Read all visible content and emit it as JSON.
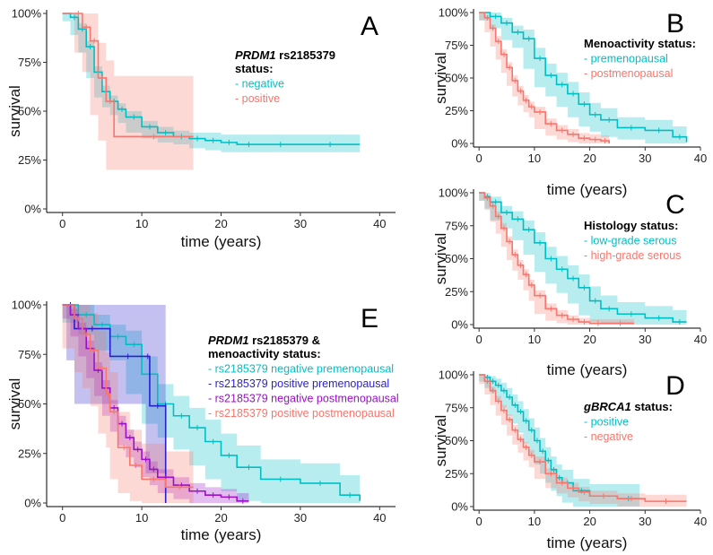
{
  "colors": {
    "teal": "#00BFC4",
    "salmon": "#F8766D",
    "blue": "#2A1FCC",
    "purple": "#9A10C9"
  },
  "chart_data": [
    {
      "id": "A",
      "type": "line",
      "panel_label": "A",
      "xlabel": "time (years)",
      "ylabel": "survival",
      "xlim": [
        -2,
        42
      ],
      "ylim": [
        0,
        100
      ],
      "xticks": [
        0,
        10,
        20,
        30,
        40
      ],
      "yticks": [
        "0%",
        "25%",
        "50%",
        "75%",
        "100%"
      ],
      "legend": {
        "title_italic": "PRDM1",
        "title_rest": " rs2185379",
        "title_line2": "status:",
        "placement": "top-right"
      },
      "series": [
        {
          "name": "negative",
          "label": "- negative",
          "color": "teal",
          "x": [
            0,
            1,
            2,
            3,
            4,
            5,
            6,
            7,
            8,
            10,
            12,
            14,
            16,
            18,
            20,
            22,
            25,
            30,
            37.5
          ],
          "y": [
            100,
            98,
            92,
            83,
            70,
            60,
            55,
            51,
            47,
            42,
            39,
            37,
            36,
            35,
            34,
            33,
            33,
            33,
            33
          ],
          "lower": [
            100,
            96,
            89,
            80,
            67,
            57,
            52,
            48,
            44,
            39,
            36,
            34,
            33,
            31,
            30,
            29,
            29,
            29,
            29
          ],
          "upper": [
            100,
            100,
            95,
            86,
            73,
            63,
            58,
            54,
            50,
            45,
            42,
            40,
            39,
            39,
            38,
            38,
            38,
            38,
            38
          ]
        },
        {
          "name": "positive",
          "label": "- positive",
          "color": "salmon",
          "x": [
            0,
            1.5,
            2.5,
            3.5,
            4.5,
            5.5,
            6.5,
            16.5
          ],
          "y": [
            100,
            100,
            93,
            86,
            67,
            55,
            37,
            37
          ],
          "lower": [
            100,
            100,
            80,
            70,
            48,
            35,
            20,
            20
          ],
          "upper": [
            100,
            100,
            100,
            100,
            85,
            76,
            68,
            68
          ]
        }
      ]
    },
    {
      "id": "B",
      "type": "line",
      "panel_label": "B",
      "xlabel": "time (years)",
      "ylabel": "survival",
      "xlim": [
        -1,
        40
      ],
      "ylim": [
        0,
        100
      ],
      "xticks": [
        0,
        10,
        20,
        30,
        40
      ],
      "yticks": [
        "0%",
        "25%",
        "50%",
        "75%",
        "100%"
      ],
      "legend": {
        "title_italic": "",
        "title_rest": "Menoactivity status:",
        "title_line2": "",
        "placement": "top-right"
      },
      "series": [
        {
          "name": "premenopausal",
          "label": "- premenopausal",
          "color": "teal",
          "x": [
            0,
            2,
            4,
            6,
            8,
            10,
            12,
            14,
            16,
            18,
            20,
            22,
            25,
            30,
            35,
            37.5
          ],
          "y": [
            100,
            97,
            92,
            85,
            80,
            65,
            52,
            45,
            38,
            30,
            22,
            18,
            12,
            10,
            5,
            1
          ],
          "lower": [
            100,
            94,
            88,
            79,
            73,
            57,
            43,
            36,
            28,
            20,
            13,
            9,
            5,
            3,
            0,
            0
          ],
          "upper": [
            100,
            100,
            96,
            90,
            87,
            73,
            61,
            54,
            47,
            39,
            31,
            27,
            20,
            18,
            13,
            12
          ]
        },
        {
          "name": "postmenopausal",
          "label": "- postmenopausal",
          "color": "salmon",
          "x": [
            0,
            1,
            2,
            3,
            4,
            5,
            6,
            7,
            8,
            9,
            10,
            12,
            14,
            16,
            18,
            20,
            22,
            23.5
          ],
          "y": [
            100,
            96,
            88,
            78,
            68,
            58,
            48,
            40,
            33,
            28,
            24,
            15,
            10,
            7,
            4,
            3,
            2,
            0
          ],
          "lower": [
            100,
            94,
            85,
            74,
            64,
            54,
            44,
            36,
            29,
            24,
            20,
            11,
            6,
            3,
            1,
            0,
            0,
            0
          ],
          "upper": [
            100,
            98,
            91,
            82,
            72,
            62,
            52,
            44,
            37,
            32,
            28,
            19,
            14,
            11,
            8,
            7,
            6,
            4
          ]
        }
      ]
    },
    {
      "id": "C",
      "type": "line",
      "panel_label": "C",
      "xlabel": "time (years)",
      "ylabel": "survival",
      "xlim": [
        -1,
        40
      ],
      "ylim": [
        0,
        100
      ],
      "xticks": [
        0,
        10,
        20,
        30,
        40
      ],
      "yticks": [
        "0%",
        "25%",
        "50%",
        "75%",
        "100%"
      ],
      "legend": {
        "title_italic": "",
        "title_rest": "Histology status:",
        "title_line2": "",
        "placement": "top-right"
      },
      "series": [
        {
          "name": "low-grade serous",
          "label": "- low-grade serous",
          "color": "teal",
          "x": [
            0,
            1,
            2,
            4,
            6,
            8,
            10,
            12,
            14,
            16,
            18,
            20,
            22,
            25,
            30,
            35,
            37.5
          ],
          "y": [
            100,
            97,
            93,
            85,
            80,
            72,
            62,
            50,
            42,
            35,
            28,
            18,
            12,
            8,
            5,
            2,
            2
          ],
          "lower": [
            100,
            94,
            88,
            79,
            73,
            64,
            53,
            40,
            31,
            24,
            16,
            7,
            2,
            0,
            0,
            0,
            0
          ],
          "upper": [
            100,
            100,
            97,
            90,
            86,
            79,
            70,
            59,
            52,
            45,
            38,
            29,
            22,
            17,
            14,
            11,
            11
          ]
        },
        {
          "name": "high-grade serous",
          "label": "- high-grade serous",
          "color": "salmon",
          "x": [
            0,
            1,
            2,
            3,
            4,
            5,
            6,
            7,
            8,
            9,
            10,
            12,
            14,
            16,
            18,
            20,
            23,
            28
          ],
          "y": [
            100,
            96,
            90,
            82,
            73,
            63,
            53,
            45,
            38,
            30,
            22,
            12,
            7,
            4,
            2,
            1,
            1,
            1
          ],
          "lower": [
            100,
            94,
            87,
            78,
            69,
            59,
            49,
            41,
            34,
            26,
            18,
            8,
            3,
            1,
            0,
            0,
            0,
            0
          ],
          "upper": [
            100,
            98,
            93,
            86,
            77,
            67,
            57,
            49,
            42,
            34,
            26,
            16,
            11,
            7,
            5,
            4,
            4,
            4
          ]
        }
      ]
    },
    {
      "id": "D",
      "type": "line",
      "panel_label": "D",
      "xlabel": "time (years)",
      "ylabel": "survival",
      "xlim": [
        -1,
        40
      ],
      "ylim": [
        0,
        100
      ],
      "xticks": [
        0,
        10,
        20,
        30,
        40
      ],
      "yticks": [
        "0%",
        "25%",
        "50%",
        "75%",
        "100%"
      ],
      "legend": {
        "title_italic": "gBRCA1",
        "title_rest": " status:",
        "title_line2": "",
        "placement": "top-right"
      },
      "series": [
        {
          "name": "positive",
          "label": "- positive",
          "color": "teal",
          "x": [
            0,
            1,
            2,
            3,
            4,
            5,
            6,
            7,
            8,
            9,
            10,
            11,
            12,
            13,
            14,
            15,
            17,
            20,
            25,
            29
          ],
          "y": [
            100,
            98,
            95,
            92,
            88,
            83,
            77,
            72,
            65,
            58,
            50,
            42,
            35,
            28,
            22,
            18,
            12,
            8,
            6,
            6
          ],
          "lower": [
            100,
            95,
            90,
            86,
            81,
            75,
            69,
            63,
            56,
            48,
            40,
            32,
            25,
            18,
            12,
            8,
            3,
            0,
            0,
            0
          ],
          "upper": [
            100,
            100,
            99,
            97,
            94,
            90,
            85,
            80,
            74,
            67,
            60,
            52,
            45,
            38,
            32,
            28,
            21,
            17,
            17,
            17
          ]
        },
        {
          "name": "negative",
          "label": "- negative",
          "color": "salmon",
          "x": [
            0,
            1,
            2,
            3,
            4,
            5,
            6,
            7,
            8,
            9,
            10,
            12,
            14,
            16,
            18,
            20,
            25,
            30,
            37.5
          ],
          "y": [
            100,
            95,
            88,
            80,
            73,
            66,
            58,
            51,
            45,
            39,
            34,
            25,
            18,
            14,
            11,
            8,
            6,
            4,
            4
          ],
          "lower": [
            100,
            93,
            85,
            77,
            69,
            62,
            54,
            47,
            41,
            35,
            30,
            21,
            14,
            10,
            7,
            4,
            2,
            0,
            0
          ],
          "upper": [
            100,
            97,
            91,
            84,
            77,
            70,
            62,
            55,
            49,
            43,
            38,
            29,
            22,
            18,
            15,
            12,
            10,
            9,
            9
          ]
        }
      ]
    },
    {
      "id": "E",
      "type": "line",
      "panel_label": "E",
      "xlabel": "time (years)",
      "ylabel": "survival",
      "xlim": [
        -2,
        42
      ],
      "ylim": [
        0,
        100
      ],
      "xticks": [
        0,
        10,
        20,
        30,
        40
      ],
      "yticks": [
        "0%",
        "25%",
        "50%",
        "75%",
        "100%"
      ],
      "legend": {
        "title_italic": "PRDM1",
        "title_rest": " rs2185379 &",
        "title_line2": "menoactivity status:",
        "placement": "top-right"
      },
      "series": [
        {
          "name": "rs2185379 negative premenopausal",
          "label": "- rs2185379 negative premenopausal",
          "color": "teal",
          "x": [
            0,
            2,
            4,
            6,
            8,
            10,
            12,
            14,
            16,
            18,
            20,
            22,
            25,
            30,
            35,
            37.5
          ],
          "y": [
            100,
            95,
            90,
            84,
            80,
            65,
            50,
            44,
            38,
            31,
            24,
            18,
            12,
            10,
            4,
            1
          ],
          "lower": [
            100,
            91,
            85,
            77,
            72,
            55,
            40,
            33,
            27,
            19,
            12,
            6,
            1,
            0,
            0,
            0
          ],
          "upper": [
            100,
            100,
            95,
            90,
            87,
            74,
            60,
            54,
            48,
            42,
            35,
            29,
            22,
            20,
            14,
            13
          ]
        },
        {
          "name": "rs2185379 positive premenopausal",
          "label": "- rs2185379 positive premenopausal",
          "color": "blue",
          "x": [
            0,
            0.5,
            1.5,
            6,
            10.5,
            11,
            13,
            13.01
          ],
          "y": [
            100,
            100,
            88,
            74,
            74,
            49,
            49,
            0
          ],
          "lower": [
            100,
            100,
            72,
            50,
            50,
            15,
            15,
            0
          ],
          "upper": [
            100,
            100,
            100,
            100,
            100,
            100,
            100,
            0
          ]
        },
        {
          "name": "rs2185379 negative postmenopausal",
          "label": "- rs2185379 negative postmenopausal",
          "color": "purple",
          "x": [
            0,
            1,
            2,
            3,
            4,
            5,
            6,
            7,
            8,
            9,
            10,
            11,
            12,
            14,
            16,
            18,
            20,
            22,
            23.5
          ],
          "y": [
            100,
            95,
            88,
            78,
            67,
            58,
            48,
            40,
            33,
            27,
            22,
            17,
            13,
            9,
            6,
            4,
            3,
            1,
            1
          ],
          "lower": [
            100,
            93,
            84,
            74,
            63,
            54,
            44,
            36,
            29,
            23,
            18,
            13,
            9,
            5,
            2,
            0,
            0,
            0,
            0
          ],
          "upper": [
            100,
            98,
            91,
            82,
            71,
            62,
            52,
            44,
            37,
            31,
            26,
            21,
            17,
            13,
            10,
            8,
            7,
            5,
            5
          ]
        },
        {
          "name": "rs2185379 positive postmenopausal",
          "label": "- rs2185379 positive postmenopausal",
          "color": "salmon",
          "x": [
            0,
            1.5,
            2.5,
            3.5,
            4.5,
            5.5,
            6,
            7,
            8.5,
            10,
            13,
            16.5
          ],
          "y": [
            100,
            93,
            85,
            77,
            68,
            55,
            46,
            28,
            19,
            12,
            8,
            8
          ],
          "lower": [
            100,
            78,
            66,
            58,
            49,
            35,
            28,
            12,
            5,
            1,
            0,
            0
          ],
          "upper": [
            100,
            100,
            100,
            96,
            87,
            76,
            66,
            46,
            37,
            30,
            26,
            26
          ]
        }
      ]
    }
  ]
}
